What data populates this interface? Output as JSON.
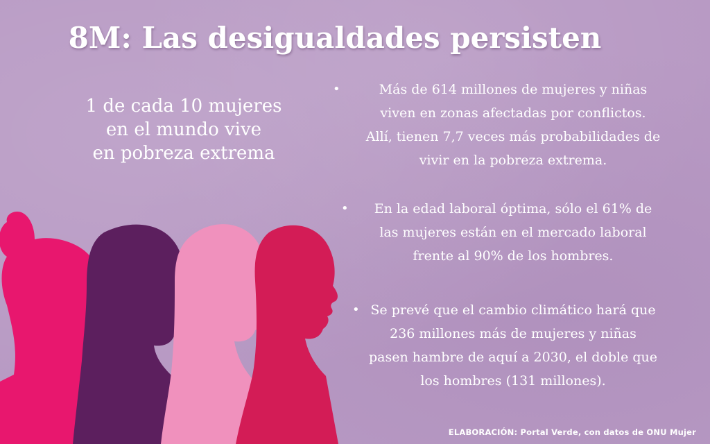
{
  "title": "8M: Las desigualdades persisten",
  "stat": {
    "lines": [
      "1 de cada 10 mujeres",
      "en el mundo vive",
      "en pobreza extrema"
    ]
  },
  "bullets": [
    {
      "marker": "•",
      "lines": [
        "Más de 614 millones de mujeres y niñas",
        "viven en zonas afectadas por conflictos.",
        "Allí, tienen 7,7 veces más probabilidades de",
        "vivir en la pobreza extrema."
      ]
    },
    {
      "marker": "•",
      "lines": [
        "En la edad laboral óptima, sólo el 61% de",
        "las mujeres están en el mercado laboral",
        "frente al 90% de los hombres."
      ]
    },
    {
      "marker": "•",
      "lines": [
        "Se prevé que el cambio climático hará que",
        "236 millones más de mujeres y niñas",
        "pasen hambre de aquí a 2030, el doble que",
        "los hombres (131 millones)."
      ]
    }
  ],
  "credit": {
    "label": "ELABORACIÓN:",
    "text": " Portal Verde, con datos de ONU Mujer"
  },
  "colors": {
    "background": "#b89ac4",
    "silhouette_1": "#e8176e",
    "silhouette_2": "#5c1f5e",
    "silhouette_3": "#f091bd",
    "silhouette_4": "#d31c56"
  },
  "icons": [
    "women-silhouettes-illustration"
  ]
}
